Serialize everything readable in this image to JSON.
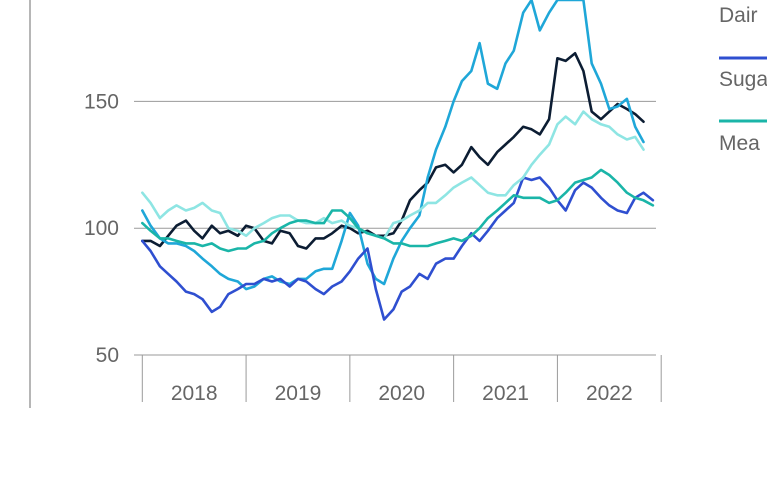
{
  "chart_data": {
    "type": "line",
    "ylim": [
      50,
      190
    ],
    "y_ticks": [
      {
        "value": 50,
        "label": "50"
      },
      {
        "value": 100,
        "label": "100"
      },
      {
        "value": 150,
        "label": "150"
      }
    ],
    "gridlines_y": [
      100,
      150
    ],
    "x_range": [
      2017.92,
      2022.95
    ],
    "x_ticks": [
      {
        "value": 2018,
        "label": "2018"
      },
      {
        "value": 2019,
        "label": "2019"
      },
      {
        "value": 2020,
        "label": "2020"
      },
      {
        "value": 2021,
        "label": "2021"
      },
      {
        "value": 2022,
        "label": "2022"
      }
    ],
    "x_boundaries": [
      2018,
      2019,
      2020,
      2021,
      2022,
      2023
    ],
    "legend_position": "right",
    "legend": [
      {
        "label": "Dair",
        "color": "#1fa7d8"
      },
      {
        "label": "Suga",
        "color": "#2f4fd0"
      },
      {
        "label": "Mea",
        "color": "#1ab5a8"
      }
    ],
    "series": [
      {
        "color": "#0c1d33",
        "points": [
          [
            2018.0,
            95
          ],
          [
            2018.08,
            95
          ],
          [
            2018.17,
            93
          ],
          [
            2018.25,
            97
          ],
          [
            2018.33,
            101
          ],
          [
            2018.42,
            103
          ],
          [
            2018.5,
            99
          ],
          [
            2018.58,
            96
          ],
          [
            2018.67,
            101
          ],
          [
            2018.75,
            98
          ],
          [
            2018.83,
            99
          ],
          [
            2018.92,
            97
          ],
          [
            2019.0,
            101
          ],
          [
            2019.08,
            100
          ],
          [
            2019.17,
            95
          ],
          [
            2019.25,
            94
          ],
          [
            2019.33,
            99
          ],
          [
            2019.42,
            98
          ],
          [
            2019.5,
            93
          ],
          [
            2019.58,
            92
          ],
          [
            2019.67,
            96
          ],
          [
            2019.75,
            96
          ],
          [
            2019.83,
            98
          ],
          [
            2019.92,
            101
          ],
          [
            2020.0,
            100
          ],
          [
            2020.08,
            98
          ],
          [
            2020.17,
            99
          ],
          [
            2020.25,
            97
          ],
          [
            2020.33,
            97
          ],
          [
            2020.42,
            98
          ],
          [
            2020.5,
            103
          ],
          [
            2020.58,
            111
          ],
          [
            2020.67,
            115
          ],
          [
            2020.75,
            118
          ],
          [
            2020.83,
            124
          ],
          [
            2020.92,
            125
          ],
          [
            2021.0,
            122
          ],
          [
            2021.08,
            125
          ],
          [
            2021.17,
            132
          ],
          [
            2021.25,
            128
          ],
          [
            2021.33,
            125
          ],
          [
            2021.42,
            130
          ],
          [
            2021.5,
            133
          ],
          [
            2021.58,
            136
          ],
          [
            2021.67,
            140
          ],
          [
            2021.75,
            139
          ],
          [
            2021.83,
            137
          ],
          [
            2021.92,
            143
          ],
          [
            2022.0,
            167
          ],
          [
            2022.08,
            166
          ],
          [
            2022.17,
            169
          ],
          [
            2022.25,
            162
          ],
          [
            2022.33,
            146
          ],
          [
            2022.42,
            143
          ],
          [
            2022.5,
            146
          ],
          [
            2022.58,
            149
          ],
          [
            2022.67,
            147
          ],
          [
            2022.75,
            145
          ],
          [
            2022.83,
            142
          ]
        ]
      },
      {
        "color": "#1fa7d8",
        "points": [
          [
            2018.0,
            107
          ],
          [
            2018.08,
            101
          ],
          [
            2018.17,
            96
          ],
          [
            2018.25,
            94
          ],
          [
            2018.33,
            94
          ],
          [
            2018.42,
            93
          ],
          [
            2018.5,
            91
          ],
          [
            2018.58,
            88
          ],
          [
            2018.67,
            85
          ],
          [
            2018.75,
            82
          ],
          [
            2018.83,
            80
          ],
          [
            2018.92,
            79
          ],
          [
            2019.0,
            76
          ],
          [
            2019.08,
            77
          ],
          [
            2019.17,
            80
          ],
          [
            2019.25,
            81
          ],
          [
            2019.33,
            79
          ],
          [
            2019.42,
            78
          ],
          [
            2019.5,
            80
          ],
          [
            2019.58,
            80
          ],
          [
            2019.67,
            83
          ],
          [
            2019.75,
            84
          ],
          [
            2019.83,
            84
          ],
          [
            2019.92,
            95
          ],
          [
            2020.0,
            106
          ],
          [
            2020.08,
            101
          ],
          [
            2020.17,
            86
          ],
          [
            2020.25,
            80
          ],
          [
            2020.33,
            78
          ],
          [
            2020.42,
            88
          ],
          [
            2020.5,
            95
          ],
          [
            2020.58,
            100
          ],
          [
            2020.67,
            105
          ],
          [
            2020.75,
            120
          ],
          [
            2020.83,
            131
          ],
          [
            2020.92,
            140
          ],
          [
            2021.0,
            150
          ],
          [
            2021.08,
            158
          ],
          [
            2021.17,
            162
          ],
          [
            2021.25,
            173
          ],
          [
            2021.33,
            157
          ],
          [
            2021.42,
            155
          ],
          [
            2021.5,
            165
          ],
          [
            2021.58,
            170
          ],
          [
            2021.67,
            185
          ],
          [
            2021.75,
            190
          ],
          [
            2021.83,
            178
          ],
          [
            2021.92,
            185
          ],
          [
            2022.0,
            190
          ],
          [
            2022.08,
            190
          ],
          [
            2022.17,
            190
          ],
          [
            2022.25,
            190
          ],
          [
            2022.33,
            165
          ],
          [
            2022.42,
            157
          ],
          [
            2022.5,
            147
          ],
          [
            2022.58,
            148
          ],
          [
            2022.67,
            151
          ],
          [
            2022.75,
            140
          ],
          [
            2022.83,
            134
          ]
        ]
      },
      {
        "color": "#2f4fd0",
        "points": [
          [
            2018.0,
            95
          ],
          [
            2018.08,
            91
          ],
          [
            2018.17,
            85
          ],
          [
            2018.25,
            82
          ],
          [
            2018.33,
            79
          ],
          [
            2018.42,
            75
          ],
          [
            2018.5,
            74
          ],
          [
            2018.58,
            72
          ],
          [
            2018.67,
            67
          ],
          [
            2018.75,
            69
          ],
          [
            2018.83,
            74
          ],
          [
            2018.92,
            76
          ],
          [
            2019.0,
            78
          ],
          [
            2019.08,
            78
          ],
          [
            2019.17,
            80
          ],
          [
            2019.25,
            79
          ],
          [
            2019.33,
            80
          ],
          [
            2019.42,
            77
          ],
          [
            2019.5,
            80
          ],
          [
            2019.58,
            79
          ],
          [
            2019.67,
            76
          ],
          [
            2019.75,
            74
          ],
          [
            2019.83,
            77
          ],
          [
            2019.92,
            79
          ],
          [
            2020.0,
            83
          ],
          [
            2020.08,
            88
          ],
          [
            2020.17,
            92
          ],
          [
            2020.25,
            76
          ],
          [
            2020.33,
            64
          ],
          [
            2020.42,
            68
          ],
          [
            2020.5,
            75
          ],
          [
            2020.58,
            77
          ],
          [
            2020.67,
            82
          ],
          [
            2020.75,
            80
          ],
          [
            2020.83,
            86
          ],
          [
            2020.92,
            88
          ],
          [
            2021.0,
            88
          ],
          [
            2021.08,
            93
          ],
          [
            2021.17,
            98
          ],
          [
            2021.25,
            95
          ],
          [
            2021.33,
            99
          ],
          [
            2021.42,
            104
          ],
          [
            2021.5,
            107
          ],
          [
            2021.58,
            110
          ],
          [
            2021.67,
            120
          ],
          [
            2021.75,
            119
          ],
          [
            2021.83,
            120
          ],
          [
            2021.92,
            116
          ],
          [
            2022.0,
            111
          ],
          [
            2022.08,
            107
          ],
          [
            2022.17,
            115
          ],
          [
            2022.25,
            118
          ],
          [
            2022.33,
            116
          ],
          [
            2022.42,
            112
          ],
          [
            2022.5,
            109
          ],
          [
            2022.58,
            107
          ],
          [
            2022.67,
            106
          ],
          [
            2022.75,
            112
          ],
          [
            2022.83,
            114
          ],
          [
            2022.92,
            111
          ]
        ]
      },
      {
        "color": "#8ee5e3",
        "points": [
          [
            2018.0,
            114
          ],
          [
            2018.08,
            110
          ],
          [
            2018.17,
            104
          ],
          [
            2018.25,
            107
          ],
          [
            2018.33,
            109
          ],
          [
            2018.42,
            107
          ],
          [
            2018.5,
            108
          ],
          [
            2018.58,
            110
          ],
          [
            2018.67,
            107
          ],
          [
            2018.75,
            106
          ],
          [
            2018.83,
            100
          ],
          [
            2018.92,
            99
          ],
          [
            2019.0,
            97
          ],
          [
            2019.08,
            100
          ],
          [
            2019.17,
            102
          ],
          [
            2019.25,
            104
          ],
          [
            2019.33,
            105
          ],
          [
            2019.42,
            105
          ],
          [
            2019.5,
            103
          ],
          [
            2019.58,
            102
          ],
          [
            2019.67,
            102
          ],
          [
            2019.75,
            104
          ],
          [
            2019.83,
            102
          ],
          [
            2019.92,
            103
          ],
          [
            2020.0,
            101
          ],
          [
            2020.08,
            100
          ],
          [
            2020.17,
            98
          ],
          [
            2020.25,
            97
          ],
          [
            2020.33,
            96
          ],
          [
            2020.42,
            102
          ],
          [
            2020.5,
            103
          ],
          [
            2020.58,
            105
          ],
          [
            2020.67,
            107
          ],
          [
            2020.75,
            110
          ],
          [
            2020.83,
            110
          ],
          [
            2020.92,
            113
          ],
          [
            2021.0,
            116
          ],
          [
            2021.08,
            118
          ],
          [
            2021.17,
            120
          ],
          [
            2021.25,
            117
          ],
          [
            2021.33,
            114
          ],
          [
            2021.42,
            113
          ],
          [
            2021.5,
            113
          ],
          [
            2021.58,
            117
          ],
          [
            2021.67,
            120
          ],
          [
            2021.75,
            125
          ],
          [
            2021.83,
            129
          ],
          [
            2021.92,
            133
          ],
          [
            2022.0,
            141
          ],
          [
            2022.08,
            144
          ],
          [
            2022.17,
            141
          ],
          [
            2022.25,
            146
          ],
          [
            2022.33,
            143
          ],
          [
            2022.42,
            141
          ],
          [
            2022.5,
            140
          ],
          [
            2022.58,
            137
          ],
          [
            2022.67,
            135
          ],
          [
            2022.75,
            136
          ],
          [
            2022.83,
            131
          ]
        ]
      },
      {
        "color": "#1ab5a8",
        "points": [
          [
            2018.0,
            102
          ],
          [
            2018.08,
            99
          ],
          [
            2018.17,
            96
          ],
          [
            2018.25,
            96
          ],
          [
            2018.33,
            95
          ],
          [
            2018.42,
            94
          ],
          [
            2018.5,
            94
          ],
          [
            2018.58,
            93
          ],
          [
            2018.67,
            94
          ],
          [
            2018.75,
            92
          ],
          [
            2018.83,
            91
          ],
          [
            2018.92,
            92
          ],
          [
            2019.0,
            92
          ],
          [
            2019.08,
            94
          ],
          [
            2019.17,
            95
          ],
          [
            2019.25,
            98
          ],
          [
            2019.33,
            100
          ],
          [
            2019.42,
            102
          ],
          [
            2019.5,
            103
          ],
          [
            2019.58,
            103
          ],
          [
            2019.67,
            102
          ],
          [
            2019.75,
            102
          ],
          [
            2019.83,
            107
          ],
          [
            2019.92,
            107
          ],
          [
            2020.0,
            104
          ],
          [
            2020.08,
            100
          ],
          [
            2020.17,
            98
          ],
          [
            2020.25,
            97
          ],
          [
            2020.33,
            96
          ],
          [
            2020.42,
            94
          ],
          [
            2020.5,
            94
          ],
          [
            2020.58,
            93
          ],
          [
            2020.67,
            93
          ],
          [
            2020.75,
            93
          ],
          [
            2020.83,
            94
          ],
          [
            2020.92,
            95
          ],
          [
            2021.0,
            96
          ],
          [
            2021.08,
            95
          ],
          [
            2021.17,
            97
          ],
          [
            2021.25,
            100
          ],
          [
            2021.33,
            104
          ],
          [
            2021.42,
            107
          ],
          [
            2021.5,
            110
          ],
          [
            2021.58,
            113
          ],
          [
            2021.67,
            112
          ],
          [
            2021.75,
            112
          ],
          [
            2021.83,
            112
          ],
          [
            2021.92,
            110
          ],
          [
            2022.0,
            111
          ],
          [
            2022.08,
            114
          ],
          [
            2022.17,
            118
          ],
          [
            2022.25,
            119
          ],
          [
            2022.33,
            120
          ],
          [
            2022.42,
            123
          ],
          [
            2022.5,
            121
          ],
          [
            2022.58,
            118
          ],
          [
            2022.67,
            114
          ],
          [
            2022.75,
            112
          ],
          [
            2022.83,
            111
          ],
          [
            2022.92,
            109
          ]
        ]
      }
    ]
  }
}
